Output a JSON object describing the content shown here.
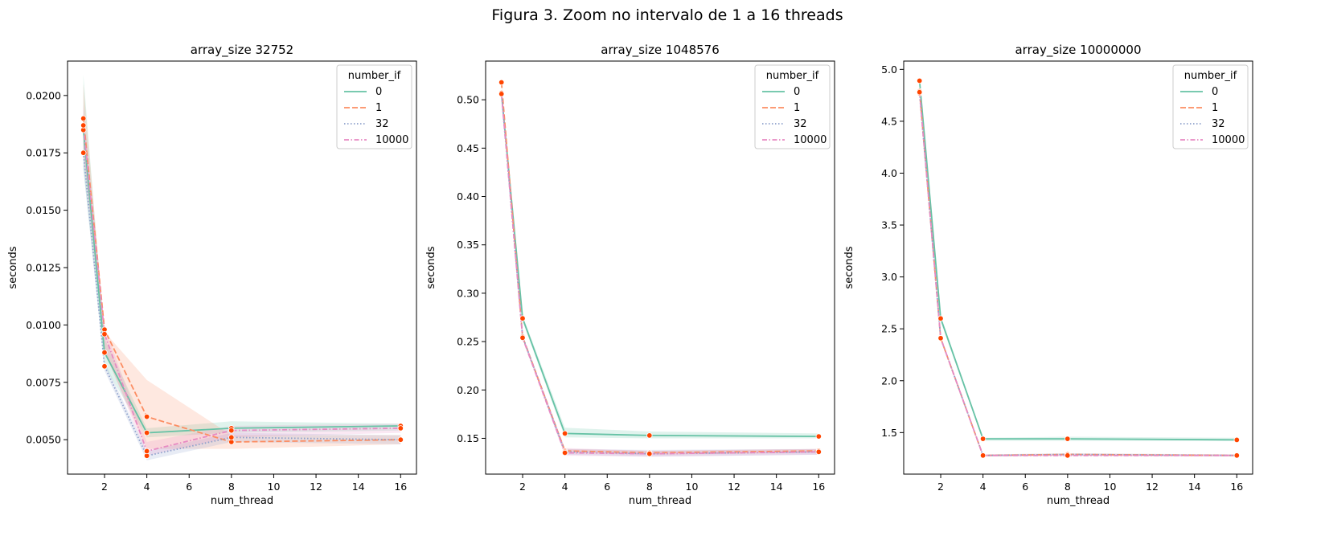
{
  "suptitle": "Figura 3. Zoom no intervalo de 1 a 16 threads",
  "legend": {
    "title": "number_if",
    "entries": [
      {
        "label": "0",
        "color": "#66c2a5",
        "dash": "solid"
      },
      {
        "label": "1",
        "color": "#fc8d62",
        "dash": "dashed"
      },
      {
        "label": "32",
        "color": "#8da0cb",
        "dash": "dotted"
      },
      {
        "label": "10000",
        "color": "#e78ac3",
        "dash": "dashdot"
      }
    ]
  },
  "marker_color": "#ff4500",
  "chart_data": [
    {
      "type": "line",
      "title": "array_size 32752",
      "xlabel": "num_thread",
      "ylabel": "seconds",
      "xlim": [
        0.25,
        16.75
      ],
      "ylim": [
        0.0035,
        0.0215
      ],
      "xticks": [
        "2",
        "4",
        "6",
        "8",
        "10",
        "12",
        "14",
        "16"
      ],
      "yticks": [
        "0.0050",
        "0.0075",
        "0.0100",
        "0.0125",
        "0.0150",
        "0.0175",
        "0.0200"
      ],
      "legend_position": "upper right",
      "x": [
        1,
        2,
        4,
        8,
        16
      ],
      "series": [
        {
          "name": "0",
          "values": [
            0.0185,
            0.0088,
            0.0053,
            0.0055,
            0.0056
          ],
          "band_low": [
            0.0168,
            0.0082,
            0.0051,
            0.0053,
            0.0054
          ],
          "band_high": [
            0.0209,
            0.0094,
            0.0055,
            0.0058,
            0.0057
          ]
        },
        {
          "name": "1",
          "values": [
            0.019,
            0.0098,
            0.006,
            0.0049,
            0.005
          ],
          "band_low": [
            0.0176,
            0.0088,
            0.0046,
            0.0046,
            0.0048
          ],
          "band_high": [
            0.0205,
            0.0097,
            0.0076,
            0.0052,
            0.0052
          ]
        },
        {
          "name": "32",
          "values": [
            0.0175,
            0.0082,
            0.0043,
            0.0051,
            0.005
          ],
          "band_low": [
            0.0168,
            0.008,
            0.0041,
            0.0049,
            0.0048
          ],
          "band_high": [
            0.0182,
            0.0084,
            0.0045,
            0.0053,
            0.0052
          ]
        },
        {
          "name": "10000",
          "values": [
            0.0187,
            0.0096,
            0.0045,
            0.0054,
            0.0055
          ],
          "band_low": [
            0.0176,
            0.0089,
            0.0043,
            0.0051,
            0.0053
          ],
          "band_high": [
            0.0196,
            0.0099,
            0.0049,
            0.0056,
            0.0057
          ]
        }
      ]
    },
    {
      "type": "line",
      "title": "array_size 1048576",
      "xlabel": "num_thread",
      "ylabel": "seconds",
      "xlim": [
        0.25,
        16.75
      ],
      "ylim": [
        0.113,
        0.54
      ],
      "xticks": [
        "2",
        "4",
        "6",
        "8",
        "10",
        "12",
        "14",
        "16"
      ],
      "yticks": [
        "0.15",
        "0.20",
        "0.25",
        "0.30",
        "0.35",
        "0.40",
        "0.45",
        "0.50"
      ],
      "legend_position": "upper right",
      "x": [
        1,
        2,
        4,
        8,
        16
      ],
      "series": [
        {
          "name": "0",
          "values": [
            0.507,
            0.274,
            0.155,
            0.153,
            0.152
          ],
          "band_low": [
            0.504,
            0.271,
            0.151,
            0.15,
            0.15
          ],
          "band_high": [
            0.51,
            0.277,
            0.161,
            0.157,
            0.155
          ]
        },
        {
          "name": "1",
          "values": [
            0.518,
            0.255,
            0.137,
            0.135,
            0.137
          ],
          "band_low": [
            0.516,
            0.253,
            0.135,
            0.133,
            0.135
          ],
          "band_high": [
            0.52,
            0.257,
            0.139,
            0.137,
            0.139
          ]
        },
        {
          "name": "32",
          "values": [
            0.507,
            0.255,
            0.136,
            0.134,
            0.136
          ],
          "band_low": [
            0.504,
            0.253,
            0.133,
            0.131,
            0.133
          ],
          "band_high": [
            0.51,
            0.257,
            0.139,
            0.138,
            0.139
          ]
        },
        {
          "name": "10000",
          "values": [
            0.506,
            0.254,
            0.135,
            0.134,
            0.136
          ],
          "band_low": [
            0.503,
            0.252,
            0.132,
            0.131,
            0.133
          ],
          "band_high": [
            0.509,
            0.256,
            0.14,
            0.137,
            0.139
          ]
        }
      ]
    },
    {
      "type": "line",
      "title": "array_size 10000000",
      "xlabel": "num_thread",
      "ylabel": "seconds",
      "xlim": [
        0.25,
        16.75
      ],
      "ylim": [
        1.1,
        5.08
      ],
      "xticks": [
        "2",
        "4",
        "6",
        "8",
        "10",
        "12",
        "14",
        "16"
      ],
      "yticks": [
        "1.5",
        "2.0",
        "2.5",
        "3.0",
        "3.5",
        "4.0",
        "4.5",
        "5.0"
      ],
      "legend_position": "upper right",
      "x": [
        1,
        2,
        4,
        8,
        16
      ],
      "series": [
        {
          "name": "0",
          "values": [
            4.89,
            2.6,
            1.44,
            1.44,
            1.43
          ],
          "band_low": [
            4.86,
            2.57,
            1.42,
            1.42,
            1.42
          ],
          "band_high": [
            4.92,
            2.63,
            1.45,
            1.46,
            1.45
          ]
        },
        {
          "name": "1",
          "values": [
            4.79,
            2.41,
            1.28,
            1.29,
            1.28
          ],
          "band_low": [
            4.76,
            2.39,
            1.27,
            1.28,
            1.27
          ],
          "band_high": [
            4.82,
            2.43,
            1.29,
            1.3,
            1.29
          ]
        },
        {
          "name": "32",
          "values": [
            4.77,
            2.41,
            1.28,
            1.29,
            1.28
          ],
          "band_low": [
            4.74,
            2.39,
            1.27,
            1.28,
            1.27
          ],
          "band_high": [
            4.8,
            2.43,
            1.29,
            1.3,
            1.29
          ]
        },
        {
          "name": "10000",
          "values": [
            4.78,
            2.41,
            1.28,
            1.28,
            1.28
          ],
          "band_low": [
            4.75,
            2.39,
            1.27,
            1.27,
            1.27
          ],
          "band_high": [
            4.81,
            2.43,
            1.29,
            1.29,
            1.29
          ]
        }
      ]
    }
  ]
}
